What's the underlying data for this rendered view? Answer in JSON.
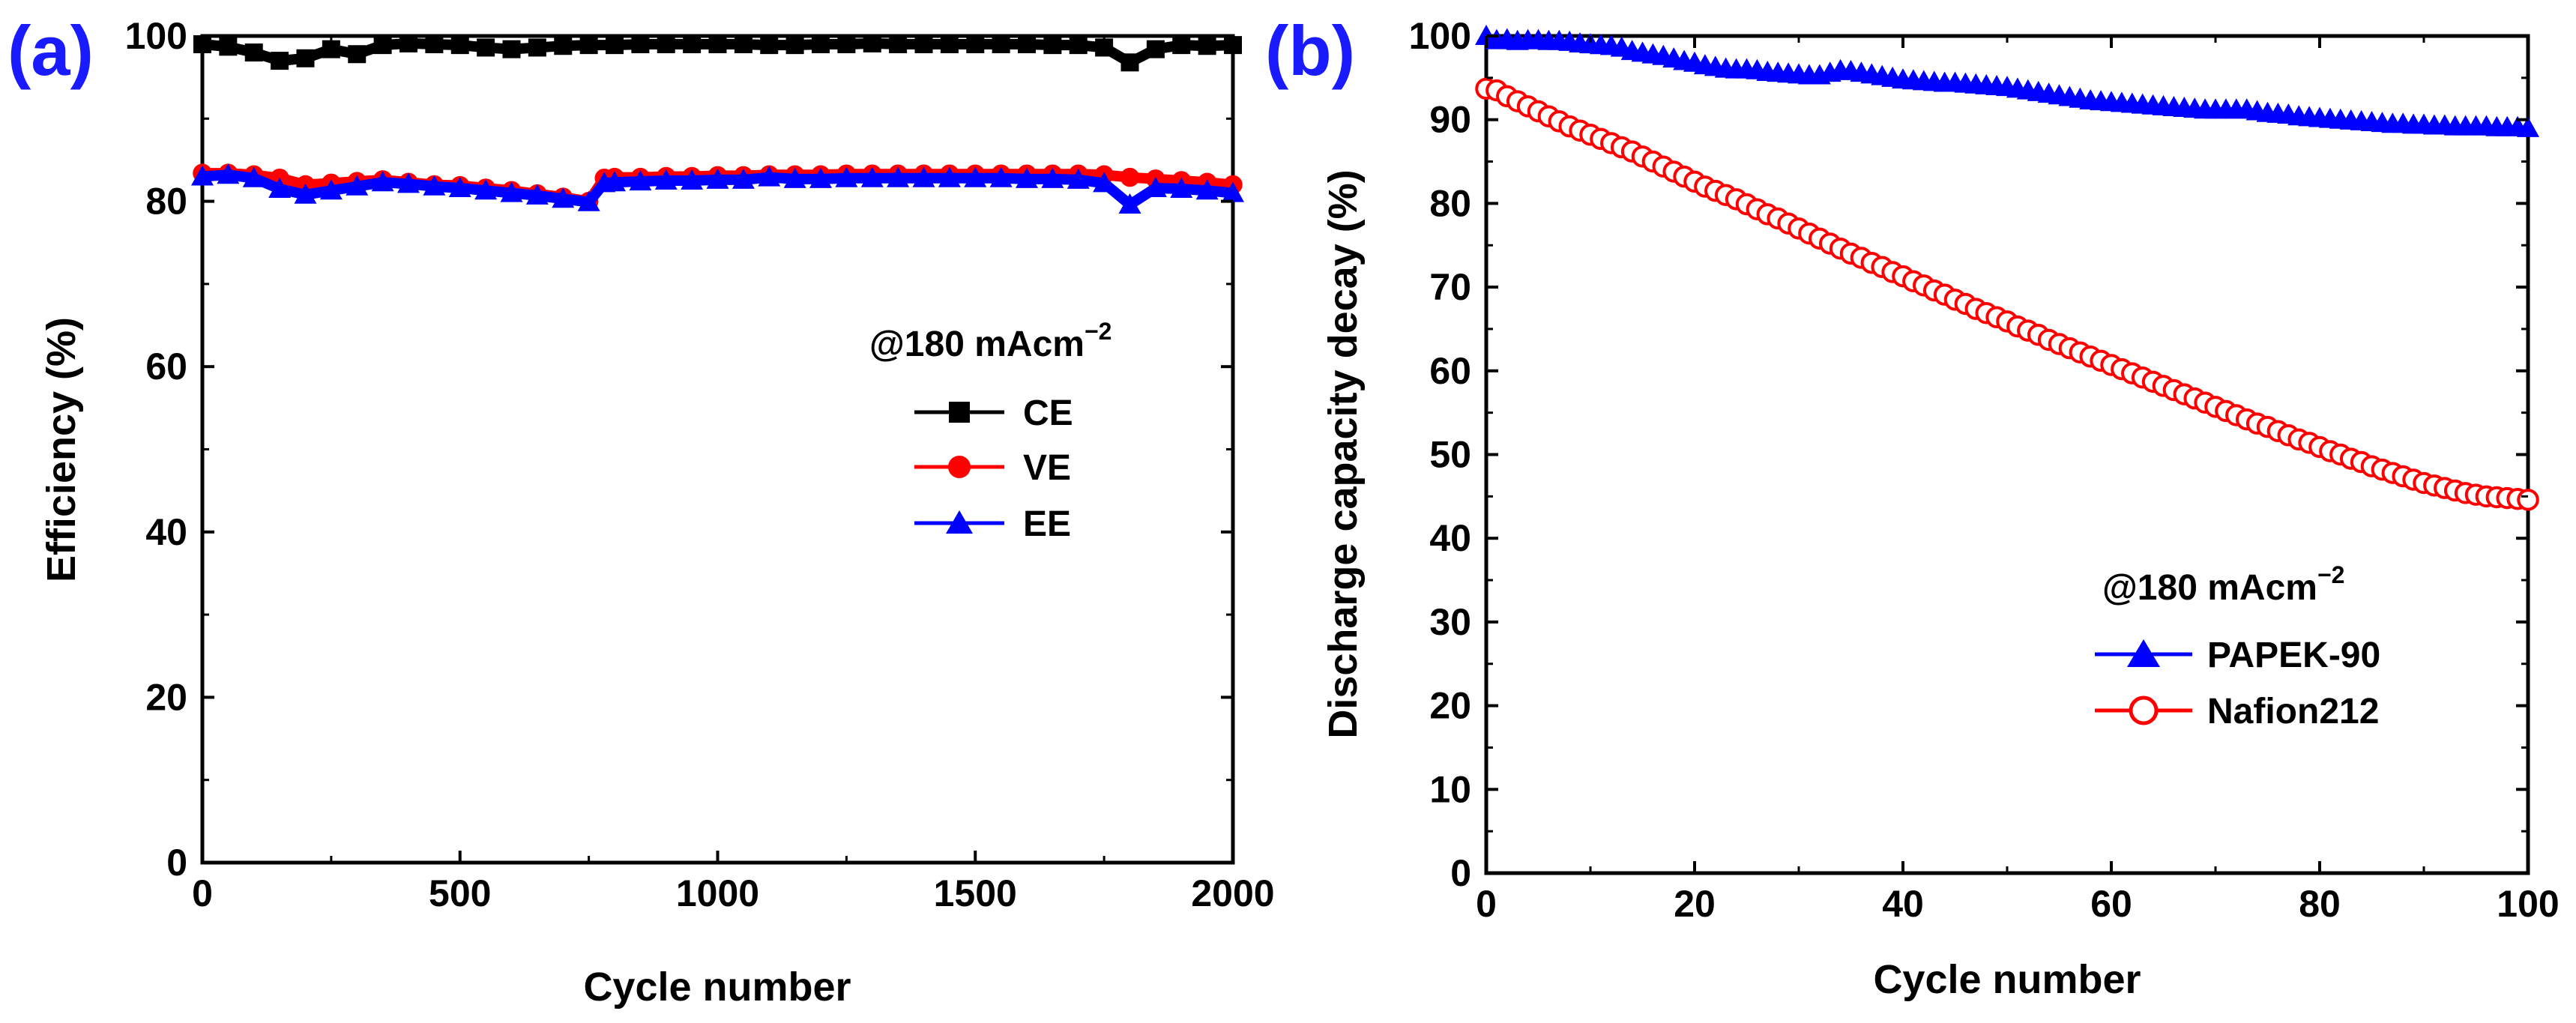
{
  "chart_data": [
    {
      "panel": "(a)",
      "type": "scatter",
      "title": "",
      "xlabel": "Cycle number",
      "ylabel": "Efficiency (%)",
      "xlim": [
        0,
        2000
      ],
      "ylim": [
        0,
        100
      ],
      "xticks": [
        0,
        500,
        1000,
        1500,
        2000
      ],
      "yticks": [
        0,
        20,
        40,
        60,
        80,
        100
      ],
      "xtick_labels": [
        "0",
        "500",
        "1000",
        "1500",
        "2000"
      ],
      "ytick_labels": [
        "0",
        "20",
        "40",
        "60",
        "80",
        "100"
      ],
      "legend_title": "@180 mAcm",
      "legend_title_sup": "−2",
      "legend_position": "center-right",
      "series": [
        {
          "name": "CE",
          "color": "#000000",
          "marker": "square",
          "x": [
            0,
            50,
            100,
            150,
            200,
            250,
            300,
            350,
            400,
            450,
            500,
            550,
            600,
            650,
            700,
            750,
            800,
            850,
            900,
            950,
            1000,
            1050,
            1100,
            1150,
            1200,
            1250,
            1300,
            1350,
            1400,
            1450,
            1500,
            1550,
            1600,
            1650,
            1700,
            1750,
            1800,
            1850,
            1900,
            1950,
            2000
          ],
          "values": [
            99.0,
            98.7,
            98.0,
            97.0,
            97.3,
            98.4,
            97.8,
            98.9,
            99.1,
            99.0,
            98.9,
            98.6,
            98.4,
            98.6,
            98.8,
            98.9,
            98.9,
            99.0,
            99.0,
            99.0,
            99.0,
            99.0,
            98.9,
            98.9,
            99.0,
            99.0,
            99.1,
            99.0,
            99.0,
            99.0,
            99.0,
            99.0,
            99.0,
            98.9,
            98.9,
            98.6,
            96.8,
            98.4,
            98.9,
            98.8,
            98.9
          ]
        },
        {
          "name": "VE",
          "color": "#ff0000",
          "marker": "circle",
          "x": [
            0,
            50,
            100,
            150,
            200,
            250,
            300,
            350,
            400,
            450,
            500,
            550,
            600,
            650,
            700,
            750,
            780,
            800,
            850,
            900,
            950,
            1000,
            1050,
            1100,
            1150,
            1200,
            1250,
            1300,
            1350,
            1400,
            1450,
            1500,
            1550,
            1600,
            1650,
            1700,
            1750,
            1800,
            1850,
            1900,
            1950,
            2000
          ],
          "values": [
            83.4,
            83.4,
            83.2,
            82.8,
            82.0,
            82.2,
            82.4,
            82.6,
            82.3,
            82.0,
            81.9,
            81.6,
            81.3,
            80.9,
            80.5,
            80.0,
            82.8,
            82.9,
            82.9,
            83.0,
            83.0,
            83.1,
            83.1,
            83.2,
            83.2,
            83.2,
            83.3,
            83.3,
            83.3,
            83.3,
            83.3,
            83.3,
            83.3,
            83.3,
            83.3,
            83.3,
            83.2,
            82.9,
            82.7,
            82.5,
            82.3,
            82.0
          ]
        },
        {
          "name": "EE",
          "color": "#0000ff",
          "marker": "triangle",
          "x": [
            0,
            50,
            100,
            150,
            200,
            250,
            300,
            350,
            400,
            450,
            500,
            550,
            600,
            650,
            700,
            750,
            780,
            800,
            850,
            900,
            950,
            1000,
            1050,
            1100,
            1150,
            1200,
            1250,
            1300,
            1350,
            1400,
            1450,
            1500,
            1550,
            1600,
            1650,
            1700,
            1750,
            1800,
            1850,
            1900,
            1950,
            2000
          ],
          "values": [
            83.0,
            83.2,
            82.8,
            81.5,
            80.8,
            81.3,
            81.8,
            82.3,
            82.1,
            81.8,
            81.6,
            81.3,
            81.0,
            80.7,
            80.3,
            79.9,
            82.2,
            82.3,
            82.4,
            82.5,
            82.5,
            82.6,
            82.6,
            82.9,
            82.7,
            82.7,
            82.8,
            82.8,
            82.8,
            82.8,
            82.8,
            82.8,
            82.8,
            82.7,
            82.7,
            82.6,
            82.2,
            79.6,
            81.6,
            81.5,
            81.3,
            81.0
          ]
        }
      ]
    },
    {
      "panel": "(b)",
      "type": "scatter",
      "title": "",
      "xlabel": "Cycle number",
      "ylabel": "Discharge capacity decay (%)",
      "xlim": [
        0,
        100
      ],
      "ylim": [
        0,
        100
      ],
      "xticks": [
        0,
        20,
        40,
        60,
        80,
        100
      ],
      "yticks": [
        0,
        10,
        20,
        30,
        40,
        50,
        60,
        70,
        80,
        90,
        100
      ],
      "xtick_labels": [
        "0",
        "20",
        "40",
        "60",
        "80",
        "100"
      ],
      "ytick_labels": [
        "0",
        "10",
        "20",
        "30",
        "40",
        "50",
        "60",
        "70",
        "80",
        "90",
        "100"
      ],
      "legend_title": "@180 mAcm",
      "legend_title_sup": "−2",
      "legend_position": "lower-right",
      "series": [
        {
          "name": "PAPEK-90",
          "color": "#0000ff",
          "marker": "triangle-filled",
          "x": [
            0,
            1,
            2,
            3,
            4,
            5,
            6,
            7,
            8,
            9,
            10,
            11,
            12,
            13,
            14,
            15,
            16,
            17,
            18,
            19,
            20,
            21,
            22,
            23,
            24,
            25,
            26,
            27,
            28,
            29,
            30,
            31,
            32,
            33,
            34,
            35,
            36,
            37,
            38,
            39,
            40,
            41,
            42,
            43,
            44,
            45,
            46,
            47,
            48,
            49,
            50,
            51,
            52,
            53,
            54,
            55,
            56,
            57,
            58,
            59,
            60,
            61,
            62,
            63,
            64,
            65,
            66,
            67,
            68,
            69,
            70,
            71,
            72,
            73,
            74,
            75,
            76,
            77,
            78,
            79,
            80,
            81,
            82,
            83,
            84,
            85,
            86,
            87,
            88,
            89,
            90,
            91,
            92,
            93,
            94,
            95,
            96,
            97,
            98,
            99,
            100
          ],
          "values": [
            100.0,
            99.5,
            99.6,
            99.4,
            99.5,
            99.5,
            99.4,
            99.4,
            99.3,
            99.1,
            99.0,
            98.9,
            98.8,
            98.6,
            98.2,
            98.0,
            97.8,
            97.6,
            97.3,
            97.0,
            96.8,
            96.5,
            96.3,
            96.1,
            96.0,
            96.0,
            95.9,
            95.7,
            95.6,
            95.5,
            95.4,
            95.3,
            95.3,
            95.6,
            95.9,
            95.8,
            95.6,
            95.4,
            95.2,
            95.0,
            94.8,
            94.7,
            94.6,
            94.5,
            94.4,
            94.4,
            94.3,
            94.2,
            94.1,
            94.0,
            93.9,
            93.7,
            93.5,
            93.3,
            93.1,
            92.9,
            92.7,
            92.5,
            92.3,
            92.2,
            92.1,
            92.0,
            91.9,
            91.8,
            91.7,
            91.6,
            91.5,
            91.4,
            91.3,
            91.2,
            91.2,
            91.2,
            91.2,
            91.2,
            91.0,
            90.8,
            90.7,
            90.6,
            90.4,
            90.3,
            90.2,
            90.1,
            90.0,
            89.9,
            89.8,
            89.7,
            89.6,
            89.5,
            89.5,
            89.4,
            89.4,
            89.3,
            89.3,
            89.2,
            89.2,
            89.2,
            89.2,
            89.1,
            89.1,
            89.1,
            89.0
          ]
        },
        {
          "name": "Nafion212",
          "color": "#ff0000",
          "marker": "circle-open",
          "x": [
            0,
            1,
            2,
            3,
            4,
            5,
            6,
            7,
            8,
            9,
            10,
            11,
            12,
            13,
            14,
            15,
            16,
            17,
            18,
            19,
            20,
            21,
            22,
            23,
            24,
            25,
            26,
            27,
            28,
            29,
            30,
            31,
            32,
            33,
            34,
            35,
            36,
            37,
            38,
            39,
            40,
            41,
            42,
            43,
            44,
            45,
            46,
            47,
            48,
            49,
            50,
            51,
            52,
            53,
            54,
            55,
            56,
            57,
            58,
            59,
            60,
            61,
            62,
            63,
            64,
            65,
            66,
            67,
            68,
            69,
            70,
            71,
            72,
            73,
            74,
            75,
            76,
            77,
            78,
            79,
            80,
            81,
            82,
            83,
            84,
            85,
            86,
            87,
            88,
            89,
            90,
            91,
            92,
            93,
            94,
            95,
            96,
            97,
            98,
            99,
            100
          ],
          "values": [
            93.7,
            93.5,
            92.8,
            92.2,
            91.6,
            91.0,
            90.4,
            89.8,
            89.2,
            88.7,
            88.2,
            87.7,
            87.2,
            86.7,
            86.2,
            85.6,
            85.0,
            84.4,
            83.8,
            83.2,
            82.6,
            82.0,
            81.5,
            81.0,
            80.5,
            79.9,
            79.3,
            78.7,
            78.2,
            77.6,
            77.0,
            76.4,
            75.8,
            75.2,
            74.6,
            74.0,
            73.5,
            72.9,
            72.4,
            71.8,
            71.3,
            70.7,
            70.2,
            69.6,
            69.1,
            68.5,
            68.0,
            67.4,
            66.9,
            66.4,
            65.9,
            65.3,
            64.8,
            64.3,
            63.7,
            63.2,
            62.7,
            62.2,
            61.7,
            61.2,
            60.7,
            60.2,
            59.7,
            59.2,
            58.7,
            58.2,
            57.7,
            57.2,
            56.7,
            56.2,
            55.7,
            55.2,
            54.7,
            54.2,
            53.7,
            53.3,
            52.8,
            52.3,
            51.8,
            51.4,
            50.9,
            50.4,
            50.0,
            49.5,
            49.1,
            48.6,
            48.2,
            47.8,
            47.4,
            47.0,
            46.6,
            46.3,
            46.0,
            45.7,
            45.4,
            45.2,
            45.0,
            44.9,
            44.8,
            44.7,
            44.6
          ]
        }
      ]
    }
  ]
}
